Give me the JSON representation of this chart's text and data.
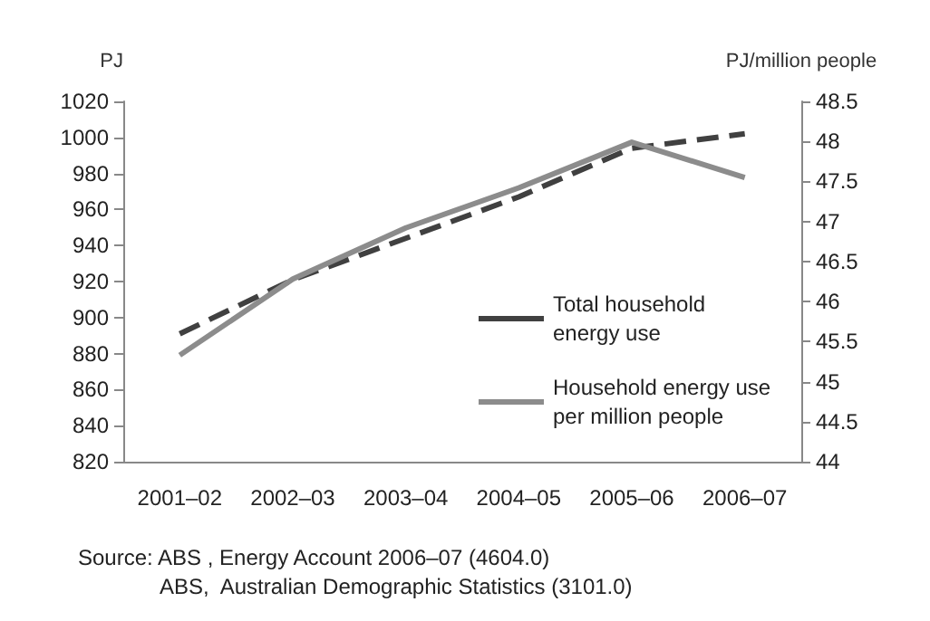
{
  "chart_data": {
    "type": "line",
    "ylabel": "PJ",
    "y2label": "PJ/million people",
    "categories": [
      "2001–02",
      "2002–03",
      "2003–04",
      "2004–05",
      "2005–06",
      "2006–07"
    ],
    "series": [
      {
        "name": "Total household energy use",
        "color": "#404040",
        "line_style": "dashed",
        "values": [
          891,
          921,
          944,
          967,
          994,
          1002
        ]
      },
      {
        "name": "Household energy use per million people",
        "color": "#8c8c8c",
        "line_style": "solid",
        "axis": "y2",
        "values": [
          45.33,
          46.28,
          46.92,
          47.42,
          47.99,
          47.55
        ]
      }
    ],
    "ylim": [
      820,
      1020
    ],
    "yticks": [
      820,
      840,
      860,
      880,
      900,
      920,
      940,
      960,
      980,
      1000,
      1020
    ],
    "y2lim": [
      44,
      48.5
    ],
    "y2ticks": [
      44,
      44.5,
      45,
      45.5,
      46,
      46.5,
      47,
      47.5,
      48,
      48.5
    ],
    "marker": "none",
    "grid": false,
    "legend": "bottom right",
    "annotations": [
      "Source: ABS , Energy Account 2006–07 (4604.0)",
      "ABS,  Australian Demographic Statistics (3101.0)"
    ]
  }
}
